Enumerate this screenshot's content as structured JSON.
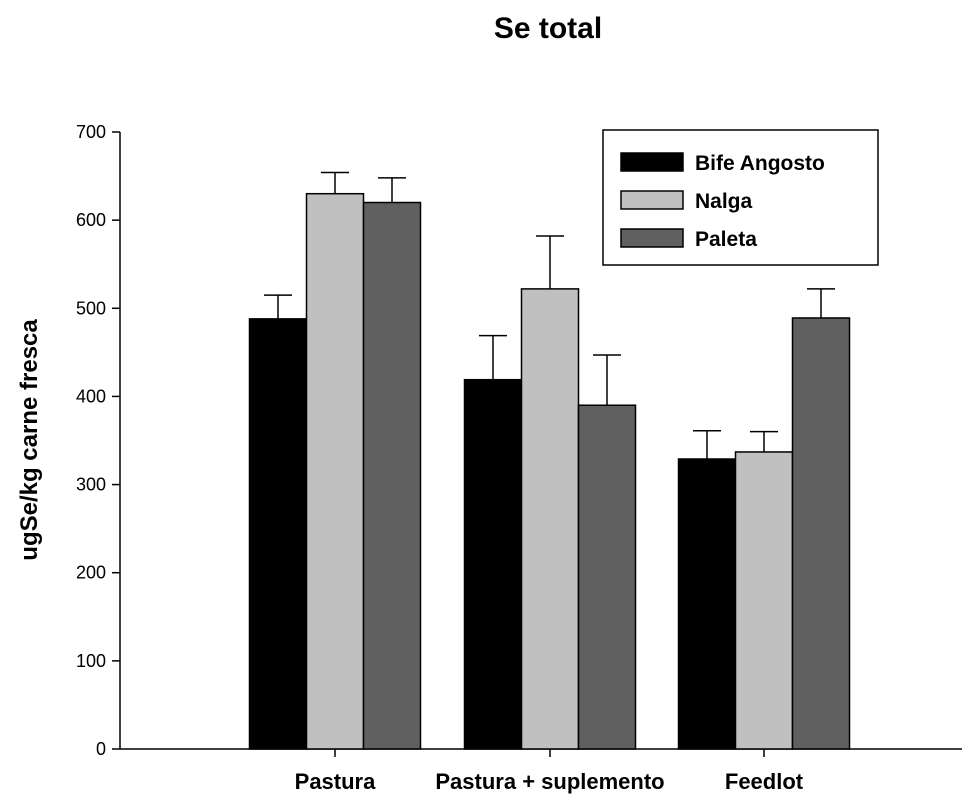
{
  "chart_data": {
    "type": "bar",
    "title": "Se total",
    "xlabel": "",
    "ylabel": "ugSe/kg carne fresca",
    "categories": [
      "Pastura",
      "Pastura + suplemento",
      "Feedlot"
    ],
    "ylim": [
      0,
      700
    ],
    "yticks": [
      0,
      100,
      200,
      300,
      400,
      500,
      600,
      700
    ],
    "series": [
      {
        "name": "Bife Angosto",
        "color": "#000000",
        "values": [
          488,
          419,
          329
        ],
        "errors": [
          27,
          50,
          32
        ]
      },
      {
        "name": "Nalga",
        "color": "#c0c0c0",
        "values": [
          630,
          522,
          337
        ],
        "errors": [
          24,
          60,
          23
        ]
      },
      {
        "name": "Paleta",
        "color": "#606060",
        "values": [
          620,
          390,
          489
        ],
        "errors": [
          28,
          57,
          33
        ]
      }
    ],
    "legend": "top-right",
    "grid": false
  }
}
